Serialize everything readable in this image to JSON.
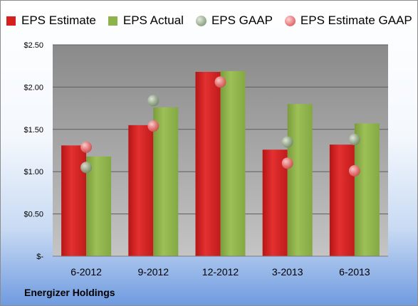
{
  "chart_data": {
    "type": "bar",
    "categories": [
      "6-2012",
      "9-2012",
      "12-2012",
      "3-2013",
      "6-2013"
    ],
    "series": [
      {
        "name": "EPS Estimate",
        "kind": "bar",
        "color": "#d62020",
        "values": [
          1.31,
          1.55,
          2.18,
          1.26,
          1.32
        ]
      },
      {
        "name": "EPS Actual",
        "kind": "bar",
        "color": "#8fb34b",
        "values": [
          1.18,
          1.76,
          2.19,
          1.8,
          1.57
        ]
      },
      {
        "name": "EPS GAAP",
        "kind": "point",
        "color": "#9aad8f",
        "values": [
          1.05,
          1.84,
          null,
          1.35,
          1.38
        ]
      },
      {
        "name": "EPS Estimate GAAP",
        "kind": "point",
        "color": "#e8777a",
        "values": [
          1.29,
          1.54,
          2.06,
          1.1,
          1.01
        ]
      }
    ],
    "ylim": [
      0,
      2.5
    ],
    "yticks": [
      0,
      0.5,
      1.0,
      1.5,
      2.0,
      2.5
    ],
    "ytick_labels": [
      "$-",
      "$0.50",
      "$1.00",
      "$1.50",
      "$2.00",
      "$2.50"
    ],
    "grid": true,
    "legend_position": "top"
  },
  "footer_title": "Energizer Holdings"
}
